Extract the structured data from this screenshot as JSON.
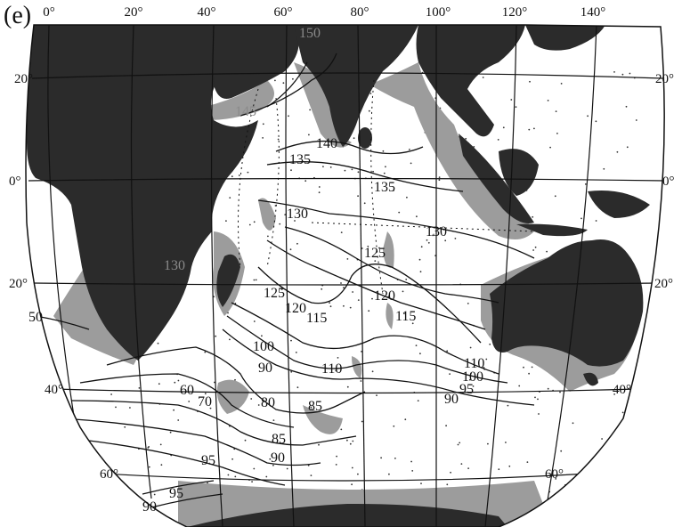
{
  "figure": {
    "panel_label": "(e)"
  },
  "longitude_labels": [
    "0°",
    "20°",
    "40°",
    "60°",
    "80°",
    "100°",
    "120°",
    "140°"
  ],
  "latitude_labels": {
    "left": [
      "20°",
      "0°",
      "20°",
      "40°",
      "60°"
    ],
    "right": [
      "20°",
      "0°",
      "20°",
      "40°",
      "60°"
    ]
  },
  "contour_labels": [
    "150",
    "145",
    "140",
    "135",
    "135",
    "130",
    "130",
    "130",
    "125",
    "125",
    "120",
    "120",
    "115",
    "115",
    "110",
    "110",
    "100",
    "100",
    "95",
    "90",
    "90",
    "90",
    "85",
    "85",
    "80",
    "70",
    "60",
    "50",
    "95",
    "95",
    "90"
  ],
  "colors": {
    "land": "#2b2b2b",
    "shelf": "#9c9c9c",
    "ocean": "#ffffff",
    "grid": "#111111",
    "contour": "#111111"
  }
}
